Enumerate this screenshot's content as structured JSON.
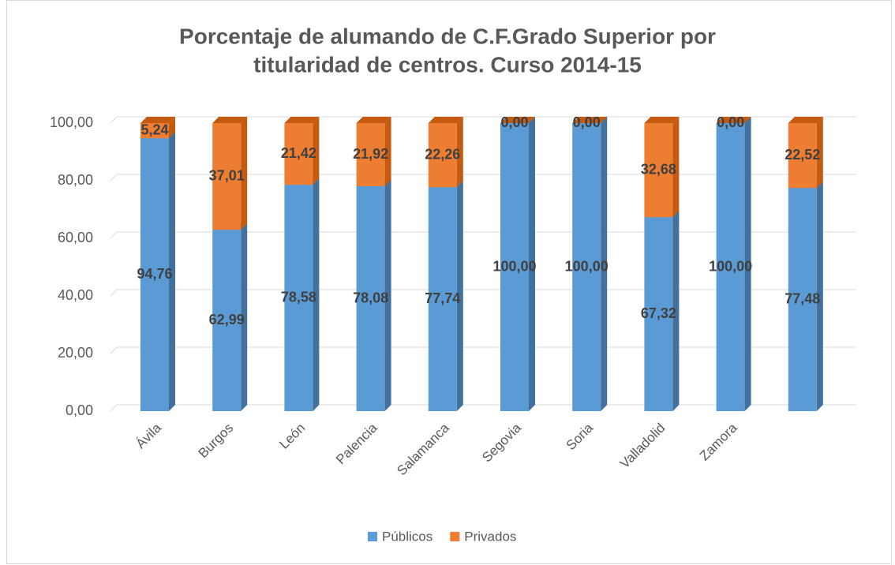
{
  "chart_data": {
    "type": "bar3d_stacked",
    "title": [
      "Porcentaje de alumando de C.F.Grado Superior por",
      "titularidad de centros. Curso 2014-15"
    ],
    "categories": [
      "Ávila",
      "Burgos",
      "León",
      "Palencia",
      "Salamanca",
      "Segovia",
      "Soria",
      "Valladolid",
      "Zamora",
      null
    ],
    "series": [
      {
        "name": "Públicos",
        "color": "#5b9bd5",
        "side_color": "#41719c",
        "values": [
          94.76,
          62.99,
          78.58,
          78.08,
          77.74,
          100,
          100,
          67.32,
          100,
          77.48
        ],
        "value_labels": [
          "94,76",
          "62,99",
          "78,58",
          "78,08",
          "77,74",
          "100,00",
          "100,00",
          "67,32",
          "100,00",
          "77,48"
        ]
      },
      {
        "name": "Privados",
        "color": "#ed7d31",
        "side_color": "#c55a11",
        "values": [
          5.24,
          37.01,
          21.42,
          21.92,
          22.26,
          0,
          0,
          32.68,
          0,
          22.52
        ],
        "value_labels": [
          "5,24",
          "37,01",
          "21,42",
          "21,92",
          "22,26",
          "0,00",
          "0,00",
          "32,68",
          "0,00",
          "22,52"
        ]
      }
    ],
    "ylim": [
      0,
      100
    ],
    "yticks": [
      {
        "value": 0,
        "label": "0,00"
      },
      {
        "value": 20,
        "label": "20,00"
      },
      {
        "value": 40,
        "label": "40,00"
      },
      {
        "value": 60,
        "label": "60,00"
      },
      {
        "value": 80,
        "label": "80,00"
      },
      {
        "value": 100,
        "label": "100,00"
      }
    ],
    "grid": true,
    "legend": "bottom"
  }
}
